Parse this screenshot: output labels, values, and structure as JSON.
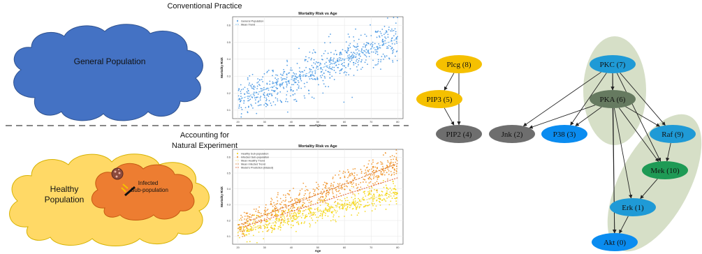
{
  "top_panel": {
    "title": "Conventional Practice",
    "cloud_label": "General Population",
    "chart_title": "Mortality Risk vs Age",
    "xlabel": "Age",
    "ylabel": "Mortality Risk",
    "legend": [
      "General Population",
      "Mean Trend"
    ]
  },
  "bottom_panel": {
    "title_line1": "Accounting for",
    "title_line2": "Natural Experiment",
    "cloud_label_line1": "Healthy",
    "cloud_label_line2": "Population",
    "inner_label_line1": "Infected",
    "inner_label_line2": "Sub-population",
    "chart_title": "Mortality Risk vs Age",
    "xlabel": "Age",
    "ylabel": "Mortality Risk",
    "legend": [
      "Healthy Sub-population",
      "Infected Sub-population",
      "Mean Healthy Trend",
      "Mean Infected Trend",
      "Model's Prediction (Biased)"
    ]
  },
  "colors": {
    "general": "#3b8fe0",
    "healthy": "#f5d400",
    "infected": "#f08c1a",
    "cloud_blue": "#4472c4",
    "cloud_yellow": "#ffd966",
    "cloud_orange": "#ed7d31",
    "node_yellow": "#f5c000",
    "node_gray": "#6e6e6e",
    "node_blue": "#1f9ad6",
    "node_bright_blue": "#0a8cf0",
    "node_olive": "#667a60",
    "node_green": "#1e9a55",
    "blob_green": "#d6dfc7"
  },
  "chart_data": [
    {
      "type": "scatter",
      "title": "Mortality Risk vs Age",
      "xlabel": "Age",
      "ylabel": "Mortality Risk",
      "xlim": [
        18,
        82
      ],
      "ylim": [
        0.05,
        0.65
      ],
      "xticks": [
        20,
        30,
        40,
        50,
        60,
        70,
        80
      ],
      "yticks": [
        0.1,
        0.2,
        0.3,
        0.4,
        0.5,
        0.6
      ],
      "grid": true,
      "legend": "top-left",
      "series": [
        {
          "name": "General Population",
          "kind": "points",
          "x_range": [
            20,
            80
          ],
          "y_start": 0.16,
          "y_end": 0.52,
          "spread": 0.06,
          "count": 700
        },
        {
          "name": "Mean Trend",
          "kind": "line",
          "x": [
            20,
            80
          ],
          "y": [
            0.16,
            0.52
          ]
        }
      ]
    },
    {
      "type": "scatter",
      "title": "Mortality Risk vs Age",
      "xlabel": "Age",
      "ylabel": "Mortality Risk",
      "xlim": [
        18,
        82
      ],
      "ylim": [
        0.05,
        0.65
      ],
      "xticks": [
        20,
        30,
        40,
        50,
        60,
        70,
        80
      ],
      "yticks": [
        0.1,
        0.2,
        0.3,
        0.4,
        0.5,
        0.6
      ],
      "grid": true,
      "legend": "top-left",
      "series": [
        {
          "name": "Healthy Sub-population",
          "kind": "points",
          "x_range": [
            20,
            80
          ],
          "y_start": 0.13,
          "y_end": 0.38,
          "spread": 0.035,
          "count": 550
        },
        {
          "name": "Infected Sub-population",
          "kind": "points",
          "x_range": [
            20,
            80
          ],
          "y_start": 0.17,
          "y_end": 0.56,
          "spread": 0.04,
          "count": 550
        },
        {
          "name": "Mean Healthy Trend",
          "kind": "line",
          "x": [
            20,
            80
          ],
          "y": [
            0.13,
            0.38
          ]
        },
        {
          "name": "Mean Infected Trend",
          "kind": "line",
          "x": [
            20,
            80
          ],
          "y": [
            0.17,
            0.56
          ]
        },
        {
          "name": "Model's Prediction (Biased)",
          "kind": "line",
          "x": [
            20,
            80
          ],
          "y": [
            0.15,
            0.47
          ]
        }
      ]
    }
  ],
  "graph": {
    "nodes": [
      {
        "id": "plcg",
        "label": "Plcg (8)",
        "color": "node_yellow"
      },
      {
        "id": "pip3",
        "label": "PIP3 (5)",
        "color": "node_yellow"
      },
      {
        "id": "pip2",
        "label": "PIP2 (4)",
        "color": "node_gray"
      },
      {
        "id": "jnk",
        "label": "Jnk (2)",
        "color": "node_gray"
      },
      {
        "id": "p38",
        "label": "P38 (3)",
        "color": "node_bright_blue"
      },
      {
        "id": "pkc",
        "label": "PKC (7)",
        "color": "node_blue"
      },
      {
        "id": "pka",
        "label": "PKA (6)",
        "color": "node_olive"
      },
      {
        "id": "raf",
        "label": "Raf (9)",
        "color": "node_blue"
      },
      {
        "id": "mek",
        "label": "Mek (10)",
        "color": "node_green"
      },
      {
        "id": "erk",
        "label": "Erk (1)",
        "color": "node_blue"
      },
      {
        "id": "akt",
        "label": "Akt (0)",
        "color": "node_bright_blue"
      }
    ],
    "edges": [
      [
        "plcg",
        "pip3"
      ],
      [
        "plcg",
        "pip2"
      ],
      [
        "pip3",
        "pip2"
      ],
      [
        "pkc",
        "pka"
      ],
      [
        "pkc",
        "jnk"
      ],
      [
        "pkc",
        "p38"
      ],
      [
        "pkc",
        "raf"
      ],
      [
        "pkc",
        "mek"
      ],
      [
        "pka",
        "jnk"
      ],
      [
        "pka",
        "p38"
      ],
      [
        "pka",
        "raf"
      ],
      [
        "pka",
        "mek"
      ],
      [
        "pka",
        "erk"
      ],
      [
        "pka",
        "akt"
      ],
      [
        "pkc",
        "akt"
      ],
      [
        "raf",
        "mek"
      ],
      [
        "mek",
        "erk"
      ],
      [
        "erk",
        "akt"
      ]
    ]
  }
}
